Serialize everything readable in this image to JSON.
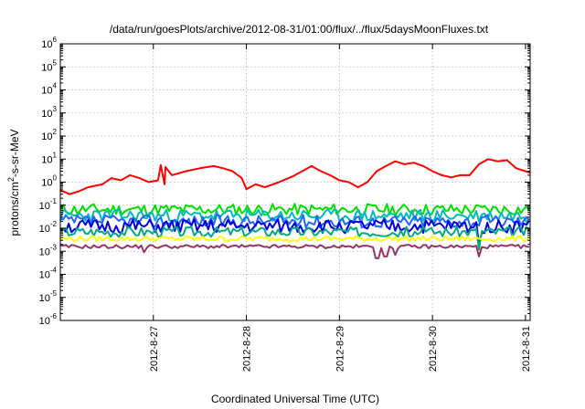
{
  "chart_data": {
    "type": "line",
    "title": "/data/run/goesPlots/archive/2012-08-31/01:00/flux/../flux/5daysMoonFluxes.txt",
    "xlabel": "Coordinated Universal Time (UTC)",
    "ylabel_parts": [
      "protons/cm",
      "2",
      "-s-sr-MeV"
    ],
    "y_scale": "log",
    "ylim_exp": [
      -6,
      6
    ],
    "y_tick_exponents": [
      -6,
      -5,
      -4,
      -3,
      -2,
      -1,
      0,
      1,
      2,
      3,
      4,
      5,
      6
    ],
    "y_tick_base": "10",
    "xlim_days": [
      26.0,
      31.05
    ],
    "x_ticks": [
      {
        "day": 27,
        "label": "2012-8-27"
      },
      {
        "day": 28,
        "label": "2012-8-28"
      },
      {
        "day": 29,
        "label": "2012-8-29"
      },
      {
        "day": 30,
        "label": "2012-8-30"
      },
      {
        "day": 31,
        "label": "2012-8-31"
      }
    ],
    "grid": true,
    "series": [
      {
        "color": "#ff0000",
        "stroke_width": 2,
        "points": [
          [
            26.0,
            0.45
          ],
          [
            26.1,
            0.3
          ],
          [
            26.2,
            0.4
          ],
          [
            26.3,
            0.6
          ],
          [
            26.45,
            0.8
          ],
          [
            26.55,
            1.5
          ],
          [
            26.65,
            1.2
          ],
          [
            26.75,
            2.0
          ],
          [
            26.85,
            1.5
          ],
          [
            26.95,
            1.0
          ],
          [
            27.05,
            1.2
          ],
          [
            27.08,
            5.5
          ],
          [
            27.12,
            0.8
          ],
          [
            27.13,
            4.5
          ],
          [
            27.2,
            2.0
          ],
          [
            27.35,
            3.0
          ],
          [
            27.5,
            4.0
          ],
          [
            27.65,
            5.0
          ],
          [
            27.75,
            4.0
          ],
          [
            27.85,
            3.0
          ],
          [
            27.95,
            1.5
          ],
          [
            28.0,
            0.5
          ],
          [
            28.1,
            0.8
          ],
          [
            28.2,
            0.6
          ],
          [
            28.35,
            1.0
          ],
          [
            28.5,
            1.8
          ],
          [
            28.6,
            3.0
          ],
          [
            28.7,
            5.0
          ],
          [
            28.8,
            3.0
          ],
          [
            28.9,
            2.0
          ],
          [
            29.0,
            1.2
          ],
          [
            29.1,
            1.0
          ],
          [
            29.2,
            0.6
          ],
          [
            29.3,
            1.0
          ],
          [
            29.4,
            3.0
          ],
          [
            29.5,
            5.0
          ],
          [
            29.6,
            8.0
          ],
          [
            29.7,
            6.0
          ],
          [
            29.8,
            7.0
          ],
          [
            29.9,
            5.0
          ],
          [
            30.0,
            3.0
          ],
          [
            30.1,
            2.0
          ],
          [
            30.2,
            1.6
          ],
          [
            30.3,
            2.0
          ],
          [
            30.4,
            2.0
          ],
          [
            30.5,
            6.0
          ],
          [
            30.6,
            10.0
          ],
          [
            30.7,
            8.0
          ],
          [
            30.8,
            9.0
          ],
          [
            30.9,
            4.0
          ],
          [
            31.0,
            3.0
          ],
          [
            31.05,
            2.5
          ]
        ]
      },
      {
        "color": "#00e000",
        "stroke_width": 2,
        "base": 0.065,
        "amplitude": 0.25,
        "step": 0.03,
        "seed": 11,
        "dips": []
      },
      {
        "color": "#00bbbb",
        "stroke_width": 2,
        "base": 0.035,
        "amplitude": 0.28,
        "step": 0.03,
        "seed": 23,
        "dips": []
      },
      {
        "color": "#2266ff",
        "stroke_width": 2,
        "base": 0.02,
        "amplitude": 0.28,
        "step": 0.03,
        "seed": 37,
        "dips": []
      },
      {
        "color": "#0000dd",
        "stroke_width": 2,
        "base": 0.012,
        "amplitude": 0.3,
        "step": 0.03,
        "seed": 51,
        "dips": [
          [
            30.5,
            0.002
          ]
        ]
      },
      {
        "color": "#00aa88",
        "stroke_width": 2,
        "base": 0.007,
        "amplitude": 0.22,
        "step": 0.03,
        "seed": 67,
        "dips": [
          [
            30.5,
            0.0012
          ]
        ]
      },
      {
        "color": "#ffff00",
        "stroke_width": 2,
        "base": 0.0035,
        "amplitude": 0.12,
        "step": 0.03,
        "seed": 79,
        "dips": []
      },
      {
        "color": "#993366",
        "stroke_width": 2,
        "base": 0.0016,
        "amplitude": 0.08,
        "step": 0.03,
        "seed": 91,
        "dips": [
          [
            26.9,
            0.0009
          ],
          [
            29.4,
            0.0005
          ],
          [
            29.5,
            0.0006
          ],
          [
            29.6,
            0.0007
          ],
          [
            30.5,
            0.0006
          ]
        ]
      }
    ]
  }
}
